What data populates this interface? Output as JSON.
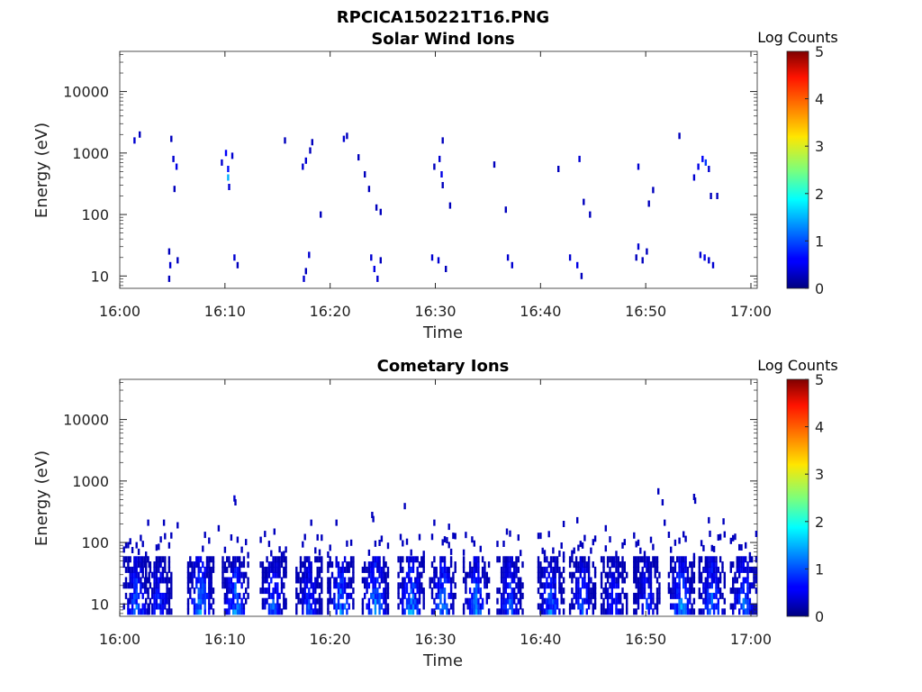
{
  "figure": {
    "filename": "RPCICA150221T16.PNG"
  },
  "chart_data": [
    {
      "type": "heatmap",
      "title": "Solar Wind Ions",
      "xlabel": "Time",
      "ylabel": "Energy (eV)",
      "x_ticks": [
        "16:00",
        "16:10",
        "16:20",
        "16:30",
        "16:40",
        "16:50",
        "17:00"
      ],
      "x_range_minutes": [
        0,
        60.6
      ],
      "y_ticks": [
        "10",
        "100",
        "1000",
        "10000"
      ],
      "y_scale": "log",
      "y_range_eV": [
        6.3,
        45000
      ],
      "colorbar": {
        "label": "Log Counts",
        "range": [
          0,
          5
        ],
        "ticks": [
          "0",
          "1",
          "2",
          "3",
          "4",
          "5"
        ],
        "colormap": "jet"
      },
      "grid": false,
      "cells": [
        [
          1.3,
          1600,
          0.4
        ],
        [
          1.8,
          2000,
          0.3
        ],
        [
          4.8,
          1700,
          0.3
        ],
        [
          5.0,
          800,
          0.4
        ],
        [
          5.3,
          600,
          0.5
        ],
        [
          5.1,
          260,
          0.3
        ],
        [
          4.6,
          25,
          0.3
        ],
        [
          4.7,
          15,
          0.4
        ],
        [
          4.6,
          9,
          0.3
        ],
        [
          5.4,
          18,
          0.3
        ],
        [
          9.6,
          700,
          0.4
        ],
        [
          10.0,
          1000,
          0.6
        ],
        [
          10.2,
          550,
          0.7
        ],
        [
          10.2,
          400,
          1.5
        ],
        [
          10.3,
          280,
          0.4
        ],
        [
          10.6,
          900,
          0.4
        ],
        [
          10.8,
          20,
          0.4
        ],
        [
          11.1,
          15,
          0.3
        ],
        [
          15.6,
          1600,
          0.3
        ],
        [
          17.3,
          600,
          0.4
        ],
        [
          17.6,
          750,
          0.4
        ],
        [
          18.0,
          1100,
          0.3
        ],
        [
          18.2,
          1500,
          0.3
        ],
        [
          19.0,
          100,
          0.3
        ],
        [
          17.4,
          9,
          0.4
        ],
        [
          17.6,
          12,
          0.3
        ],
        [
          17.9,
          22,
          0.4
        ],
        [
          21.2,
          1700,
          0.4
        ],
        [
          21.5,
          1900,
          0.3
        ],
        [
          22.6,
          850,
          0.3
        ],
        [
          23.2,
          450,
          0.3
        ],
        [
          23.6,
          260,
          0.3
        ],
        [
          24.3,
          130,
          0.3
        ],
        [
          24.7,
          110,
          0.3
        ],
        [
          23.8,
          20,
          0.4
        ],
        [
          24.1,
          13,
          0.5
        ],
        [
          24.4,
          9,
          0.4
        ],
        [
          24.7,
          18,
          0.3
        ],
        [
          29.8,
          600,
          0.3
        ],
        [
          30.3,
          800,
          0.4
        ],
        [
          30.5,
          450,
          0.5
        ],
        [
          30.6,
          300,
          0.3
        ],
        [
          30.6,
          1600,
          0.3
        ],
        [
          31.3,
          140,
          0.3
        ],
        [
          29.6,
          20,
          0.4
        ],
        [
          30.2,
          18,
          0.4
        ],
        [
          30.9,
          13,
          0.3
        ],
        [
          35.5,
          650,
          0.3
        ],
        [
          36.6,
          120,
          0.3
        ],
        [
          36.8,
          20,
          0.4
        ],
        [
          37.2,
          15,
          0.4
        ],
        [
          41.6,
          550,
          0.3
        ],
        [
          43.6,
          800,
          0.4
        ],
        [
          42.7,
          20,
          0.4
        ],
        [
          43.4,
          15,
          0.5
        ],
        [
          43.8,
          10,
          0.3
        ],
        [
          44.0,
          160,
          0.3
        ],
        [
          44.6,
          100,
          0.3
        ],
        [
          49.0,
          20,
          0.3
        ],
        [
          49.2,
          30,
          0.4
        ],
        [
          49.6,
          18,
          0.3
        ],
        [
          50.0,
          25,
          0.3
        ],
        [
          49.2,
          600,
          0.4
        ],
        [
          50.2,
          150,
          0.3
        ],
        [
          50.6,
          250,
          0.3
        ],
        [
          53.1,
          1900,
          0.3
        ],
        [
          54.5,
          400,
          0.4
        ],
        [
          54.9,
          600,
          0.5
        ],
        [
          55.3,
          800,
          0.6
        ],
        [
          55.6,
          700,
          0.9
        ],
        [
          55.9,
          550,
          0.4
        ],
        [
          56.1,
          200,
          0.3
        ],
        [
          56.7,
          200,
          0.3
        ],
        [
          55.1,
          22,
          0.4
        ],
        [
          55.5,
          20,
          0.5
        ],
        [
          55.9,
          18,
          0.4
        ],
        [
          56.3,
          15,
          0.4
        ]
      ]
    },
    {
      "type": "heatmap",
      "title": "Cometary Ions",
      "xlabel": "Time",
      "ylabel": "Energy (eV)",
      "x_ticks": [
        "16:00",
        "16:10",
        "16:20",
        "16:30",
        "16:40",
        "16:50",
        "17:00"
      ],
      "x_range_minutes": [
        0,
        60.6
      ],
      "y_ticks": [
        "10",
        "100",
        "1000",
        "10000"
      ],
      "y_scale": "log",
      "y_range_eV": [
        6.3,
        45000
      ],
      "colorbar": {
        "label": "Log Counts",
        "range": [
          0,
          5
        ],
        "ticks": [
          "0",
          "1",
          "2",
          "3",
          "4",
          "5"
        ],
        "colormap": "jet"
      },
      "grid": false,
      "clusters": [
        [
          1.5,
          1.4
        ],
        [
          3.6,
          1.1
        ],
        [
          7.6,
          1.6
        ],
        [
          10.9,
          1.5
        ],
        [
          14.5,
          1.3
        ],
        [
          17.9,
          1.1
        ],
        [
          20.9,
          1.6
        ],
        [
          24.2,
          1.7
        ],
        [
          27.6,
          1.6
        ],
        [
          30.6,
          1.5
        ],
        [
          33.8,
          1.5
        ],
        [
          37.0,
          1.3
        ],
        [
          40.9,
          1.4
        ],
        [
          43.9,
          1.2
        ],
        [
          46.9,
          1.0
        ],
        [
          50.0,
          1.1
        ],
        [
          53.3,
          1.6
        ],
        [
          56.2,
          1.5
        ],
        [
          59.2,
          1.4
        ]
      ],
      "cells": [
        [
          10.8,
          520,
          0.4
        ],
        [
          10.9,
          450,
          0.3
        ],
        [
          54.5,
          550,
          0.3
        ],
        [
          54.6,
          480,
          0.3
        ],
        [
          51.1,
          680,
          0.3
        ],
        [
          51.5,
          450,
          0.3
        ],
        [
          27.0,
          390,
          0.3
        ],
        [
          23.9,
          280,
          0.3
        ],
        [
          24.0,
          240,
          0.3
        ],
        [
          20.5,
          210,
          0.3
        ],
        [
          18.1,
          210,
          0.3
        ],
        [
          2.6,
          210,
          0.3
        ],
        [
          4.1,
          210,
          0.3
        ],
        [
          5.4,
          190,
          0.3
        ],
        [
          9.3,
          170,
          0.3
        ],
        [
          14.6,
          150,
          0.3
        ],
        [
          29.8,
          210,
          0.3
        ],
        [
          31.2,
          180,
          0.3
        ],
        [
          36.7,
          150,
          0.3
        ],
        [
          42.1,
          200,
          0.3
        ],
        [
          43.4,
          230,
          0.3
        ],
        [
          46.1,
          170,
          0.3
        ],
        [
          51.7,
          210,
          0.3
        ],
        [
          55.9,
          230,
          0.3
        ],
        [
          57.3,
          220,
          0.3
        ]
      ]
    }
  ]
}
